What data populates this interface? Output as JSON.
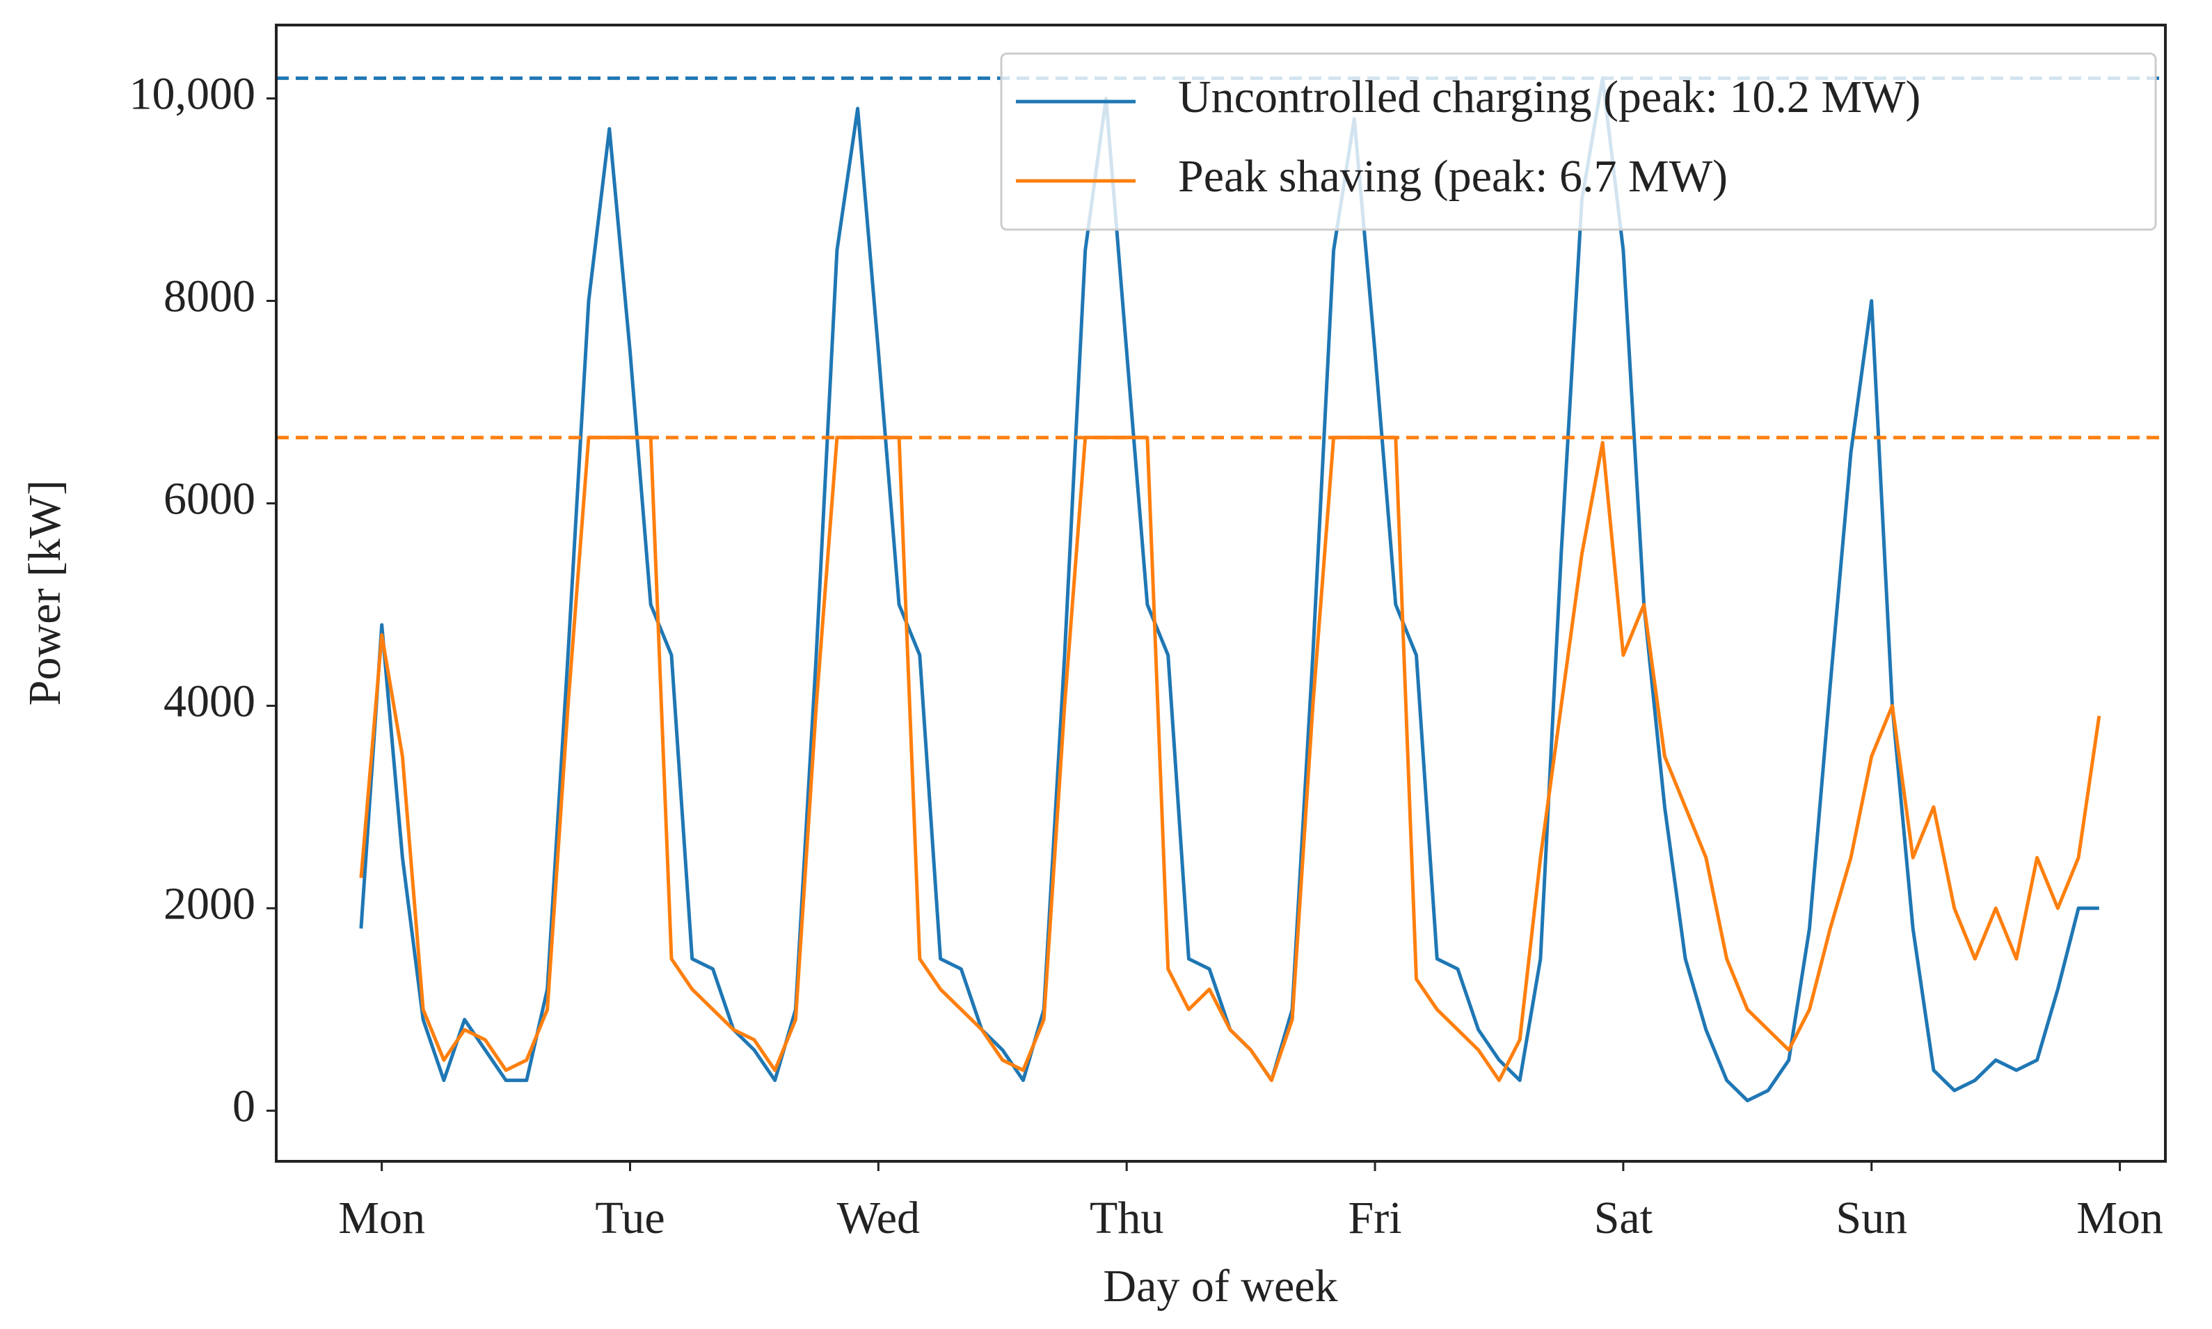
{
  "chart_data": {
    "type": "line",
    "xlabel": "Day of week",
    "ylabel": "Power [kW]",
    "x": [
      -2,
      0,
      2,
      4,
      6,
      8,
      10,
      12,
      14,
      16,
      18,
      20,
      22,
      24,
      26,
      28,
      30,
      32,
      34,
      36,
      38,
      40,
      42,
      44,
      46,
      48,
      50,
      52,
      54,
      56,
      58,
      60,
      62,
      64,
      66,
      68,
      70,
      72,
      74,
      76,
      78,
      80,
      82,
      84,
      86,
      88,
      90,
      92,
      94,
      96,
      98,
      100,
      102,
      104,
      106,
      108,
      110,
      112,
      114,
      116,
      118,
      120,
      122,
      124,
      126,
      128,
      130,
      132,
      134,
      136,
      138,
      140,
      142,
      144,
      146,
      148,
      150,
      152,
      154,
      156,
      158,
      160,
      162,
      164,
      166
    ],
    "series": [
      {
        "name": "Uncontrolled charging (peak: 10.2 MW)",
        "color": "#1f77b4",
        "values": [
          1800,
          4800,
          2500,
          900,
          300,
          900,
          600,
          300,
          300,
          1200,
          4500,
          8000,
          9700,
          7500,
          5000,
          4500,
          1500,
          1400,
          800,
          600,
          300,
          1000,
          4500,
          8500,
          9900,
          7500,
          5000,
          4500,
          1500,
          1400,
          800,
          600,
          300,
          1000,
          4500,
          8500,
          10000,
          7500,
          5000,
          4500,
          1500,
          1400,
          800,
          600,
          300,
          1000,
          4500,
          8500,
          9800,
          7500,
          5000,
          4500,
          1500,
          1400,
          800,
          500,
          300,
          1500,
          5500,
          9000,
          10200,
          8500,
          5000,
          3000,
          1500,
          800,
          300,
          100,
          200,
          500,
          1800,
          4200,
          6500,
          8000,
          4000,
          1800,
          400,
          200,
          300,
          500,
          400,
          500,
          1200,
          2000,
          2000
        ]
      },
      {
        "name": "Peak shaving (peak: 6.7 MW)",
        "color": "#ff7f0e",
        "values": [
          2300,
          4700,
          3500,
          1000,
          500,
          800,
          700,
          400,
          500,
          1000,
          4000,
          6650,
          6650,
          6650,
          6650,
          1500,
          1200,
          1000,
          800,
          700,
          400,
          900,
          4000,
          6650,
          6650,
          6650,
          6650,
          1500,
          1200,
          1000,
          800,
          500,
          400,
          900,
          4000,
          6650,
          6650,
          6650,
          6650,
          1400,
          1000,
          1200,
          800,
          600,
          300,
          900,
          4000,
          6650,
          6650,
          6650,
          6650,
          1300,
          1000,
          800,
          600,
          300,
          700,
          2500,
          4000,
          5500,
          6600,
          4500,
          5000,
          3500,
          3000,
          2500,
          1500,
          1000,
          800,
          600,
          1000,
          1800,
          2500,
          3500,
          4000,
          2500,
          3000,
          2000,
          1500,
          2000,
          1500,
          2500,
          2000,
          2500,
          3900
        ]
      }
    ],
    "reference_lines": [
      {
        "value": 10200,
        "color": "#1f77b4"
      },
      {
        "value": 6650,
        "color": "#ff7f0e"
      }
    ],
    "xlim": [
      -10.2,
      172.4
    ],
    "xticks": [
      {
        "value": 0,
        "label": "Mon"
      },
      {
        "value": 24,
        "label": "Tue"
      },
      {
        "value": 48,
        "label": "Wed"
      },
      {
        "value": 72,
        "label": "Thu"
      },
      {
        "value": 96,
        "label": "Fri"
      },
      {
        "value": 120,
        "label": "Sat"
      },
      {
        "value": 144,
        "label": "Sun"
      },
      {
        "value": 168,
        "label": "Mon"
      }
    ],
    "ylim": [
      -500,
      10725
    ],
    "yticks": [
      0,
      2000,
      4000,
      6000,
      8000,
      {
        "value": 10000,
        "label": "10,000"
      }
    ],
    "legend": "upper right"
  }
}
